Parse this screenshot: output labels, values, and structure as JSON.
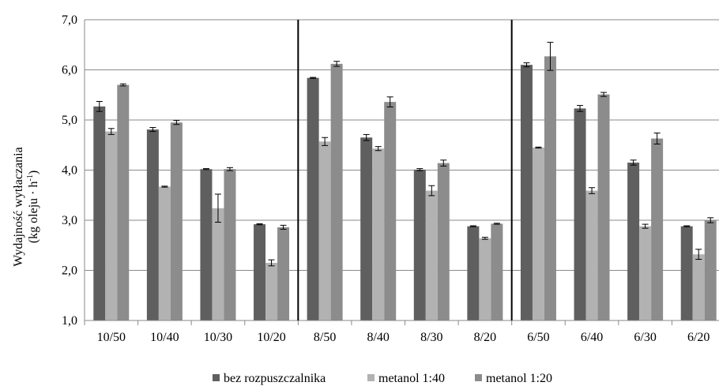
{
  "chart_data": {
    "type": "bar",
    "title": "",
    "ylabel_line1": "Wydajność wytłaczania",
    "ylabel_line2_main": "(kg oleju · h",
    "ylabel_line2_sup": "-1",
    "ylabel_line2_end": ")",
    "ylim": [
      1.0,
      7.0
    ],
    "yticks": [
      "1,0",
      "2,0",
      "3,0",
      "4,0",
      "5,0",
      "6,0",
      "7,0"
    ],
    "categories": [
      "10/50",
      "10/40",
      "10/30",
      "10/20",
      "8/50",
      "8/40",
      "8/30",
      "8/20",
      "6/50",
      "6/40",
      "6/30",
      "6/20"
    ],
    "group_separators_after": [
      3,
      7
    ],
    "grid": true,
    "legend_position": "bottom",
    "series": [
      {
        "name": "bez rozpuszczalnika",
        "color": "#5f5f5f",
        "values": [
          5.27,
          4.81,
          4.02,
          2.92,
          5.84,
          4.65,
          4.01,
          2.88,
          6.1,
          5.23,
          4.15,
          2.88
        ],
        "errors": [
          0.1,
          0.04,
          0.01,
          0.01,
          0.01,
          0.06,
          0.02,
          0.01,
          0.04,
          0.06,
          0.05,
          0.01
        ]
      },
      {
        "name": "metanol 1:40",
        "color": "#b2b2b2",
        "values": [
          4.77,
          3.67,
          3.24,
          2.15,
          4.57,
          4.43,
          3.59,
          2.64,
          4.45,
          3.59,
          2.88,
          2.32
        ],
        "errors": [
          0.06,
          0.01,
          0.28,
          0.06,
          0.08,
          0.04,
          0.1,
          0.02,
          0.01,
          0.06,
          0.04,
          0.1
        ]
      },
      {
        "name": "metanol 1:20",
        "color": "#8c8c8c",
        "values": [
          5.7,
          4.95,
          4.02,
          2.86,
          6.12,
          5.36,
          4.14,
          2.93,
          6.27,
          5.51,
          4.63,
          3.0
        ],
        "errors": [
          0.02,
          0.04,
          0.03,
          0.04,
          0.05,
          0.1,
          0.06,
          0.01,
          0.28,
          0.04,
          0.11,
          0.05
        ]
      }
    ]
  }
}
